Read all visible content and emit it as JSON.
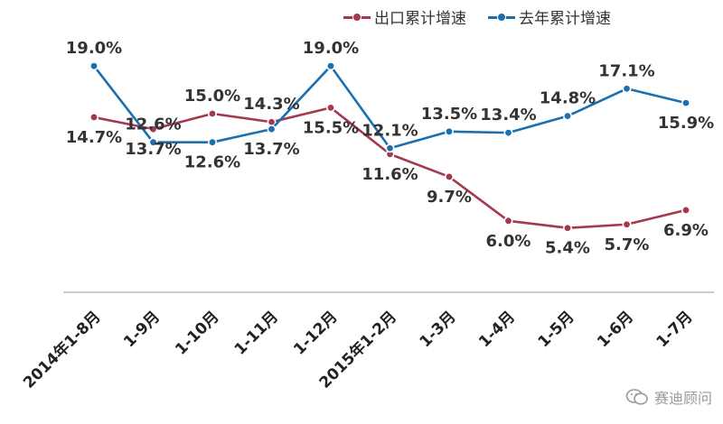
{
  "chart_data": {
    "type": "line",
    "categories": [
      "2014年1-8月",
      "1-9月",
      "1-10月",
      "1-11月",
      "1-12月",
      "2015年1-2月",
      "1-3月",
      "1-4月",
      "1-5月",
      "1-6月",
      "1-7月"
    ],
    "series": [
      {
        "name": "出口累计增速",
        "color": "#a3394e",
        "values": [
          14.7,
          13.7,
          15.0,
          14.3,
          15.5,
          11.6,
          9.7,
          6.0,
          5.4,
          5.7,
          6.9
        ],
        "labels": [
          "14.7%",
          "13.7%",
          "15.0%",
          "14.3%",
          "15.5%",
          "11.6%",
          "9.7%",
          "6.0%",
          "5.4%",
          "5.7%",
          "6.9%"
        ]
      },
      {
        "name": "去年累计增速",
        "color": "#1a6fb0",
        "values": [
          19.0,
          12.6,
          12.6,
          13.7,
          19.0,
          12.1,
          13.5,
          13.4,
          14.8,
          17.1,
          15.9
        ],
        "labels": [
          "19.0%",
          "12.6%",
          "12.6%",
          "13.7%",
          "19.0%",
          "12.1%",
          "13.5%",
          "13.4%",
          "14.8%",
          "17.1%",
          "15.9%"
        ]
      }
    ],
    "ylim": [
      0,
      21
    ],
    "grid": false,
    "legend_position": "top"
  },
  "watermark": {
    "text": "赛迪顾问",
    "icon": "wechat-icon"
  }
}
